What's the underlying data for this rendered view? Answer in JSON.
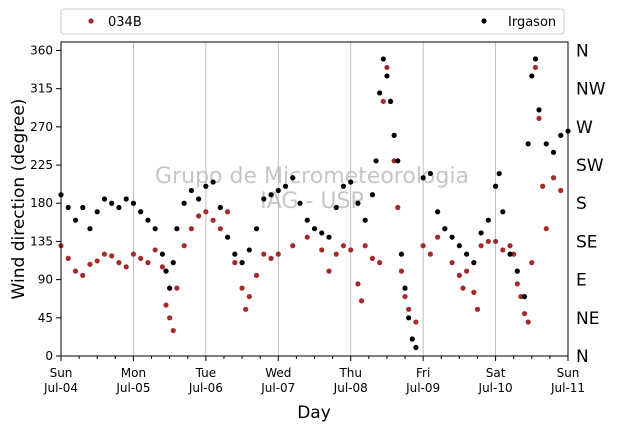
{
  "chart_data": {
    "type": "scatter",
    "xlabel": "Day",
    "ylabel": "Wind direction (degree)",
    "xlim": [
      0,
      7
    ],
    "ylim": [
      0,
      370
    ],
    "yticks": [
      0,
      45,
      90,
      135,
      180,
      225,
      270,
      315,
      360
    ],
    "xticks": [
      {
        "x": 0,
        "line1": "Sun",
        "line2": "Jul-04"
      },
      {
        "x": 1,
        "line1": "Mon",
        "line2": "Jul-05"
      },
      {
        "x": 2,
        "line1": "Tue",
        "line2": "Jul-06"
      },
      {
        "x": 3,
        "line1": "Wed",
        "line2": "Jul-07"
      },
      {
        "x": 4,
        "line1": "Thu",
        "line2": "Jul-08"
      },
      {
        "x": 5,
        "line1": "Fri",
        "line2": "Jul-09"
      },
      {
        "x": 6,
        "line1": "Sat",
        "line2": "Jul-10"
      },
      {
        "x": 7,
        "line1": "Sun",
        "line2": "Jul-11"
      }
    ],
    "compass": [
      {
        "deg": 360,
        "label": "N"
      },
      {
        "deg": 315,
        "label": "NW"
      },
      {
        "deg": 270,
        "label": "W"
      },
      {
        "deg": 225,
        "label": "SW"
      },
      {
        "deg": 180,
        "label": "S"
      },
      {
        "deg": 135,
        "label": "SE"
      },
      {
        "deg": 90,
        "label": "E"
      },
      {
        "deg": 45,
        "label": "NE"
      },
      {
        "deg": 0,
        "label": "N"
      }
    ],
    "legend_position": "top, above plot",
    "grid": "vertical lines at day ticks",
    "watermark": {
      "line1": "Grupo de Micrometeorologia",
      "line2": "IAG - USP"
    },
    "series": [
      {
        "name": "034B",
        "color": "#a52a2a",
        "points": [
          [
            0.0,
            130
          ],
          [
            0.1,
            115
          ],
          [
            0.2,
            100
          ],
          [
            0.3,
            95
          ],
          [
            0.4,
            108
          ],
          [
            0.5,
            112
          ],
          [
            0.6,
            120
          ],
          [
            0.7,
            118
          ],
          [
            0.8,
            110
          ],
          [
            0.9,
            105
          ],
          [
            1.0,
            120
          ],
          [
            1.1,
            115
          ],
          [
            1.2,
            110
          ],
          [
            1.3,
            125
          ],
          [
            1.4,
            105
          ],
          [
            1.45,
            60
          ],
          [
            1.5,
            45
          ],
          [
            1.55,
            30
          ],
          [
            1.6,
            80
          ],
          [
            1.7,
            130
          ],
          [
            1.8,
            150
          ],
          [
            1.9,
            165
          ],
          [
            2.0,
            170
          ],
          [
            2.1,
            160
          ],
          [
            2.2,
            150
          ],
          [
            2.3,
            170
          ],
          [
            2.4,
            110
          ],
          [
            2.5,
            80
          ],
          [
            2.55,
            55
          ],
          [
            2.6,
            70
          ],
          [
            2.7,
            95
          ],
          [
            2.8,
            120
          ],
          [
            2.9,
            115
          ],
          [
            3.0,
            120
          ],
          [
            3.2,
            130
          ],
          [
            3.4,
            140
          ],
          [
            3.6,
            125
          ],
          [
            3.7,
            100
          ],
          [
            3.8,
            120
          ],
          [
            3.9,
            130
          ],
          [
            4.0,
            125
          ],
          [
            4.1,
            85
          ],
          [
            4.15,
            65
          ],
          [
            4.2,
            130
          ],
          [
            4.3,
            115
          ],
          [
            4.4,
            110
          ],
          [
            4.45,
            300
          ],
          [
            4.5,
            340
          ],
          [
            4.55,
            300
          ],
          [
            4.6,
            230
          ],
          [
            4.65,
            175
          ],
          [
            4.7,
            100
          ],
          [
            4.75,
            70
          ],
          [
            4.8,
            55
          ],
          [
            4.9,
            40
          ],
          [
            5.0,
            130
          ],
          [
            5.1,
            120
          ],
          [
            5.2,
            140
          ],
          [
            5.3,
            150
          ],
          [
            5.4,
            110
          ],
          [
            5.5,
            95
          ],
          [
            5.55,
            80
          ],
          [
            5.6,
            100
          ],
          [
            5.7,
            75
          ],
          [
            5.75,
            55
          ],
          [
            5.8,
            130
          ],
          [
            5.9,
            135
          ],
          [
            6.0,
            135
          ],
          [
            6.1,
            125
          ],
          [
            6.2,
            130
          ],
          [
            6.25,
            120
          ],
          [
            6.3,
            85
          ],
          [
            6.35,
            70
          ],
          [
            6.4,
            50
          ],
          [
            6.45,
            40
          ],
          [
            6.5,
            110
          ],
          [
            6.55,
            340
          ],
          [
            6.6,
            280
          ],
          [
            6.65,
            200
          ],
          [
            6.7,
            150
          ],
          [
            6.8,
            210
          ],
          [
            6.9,
            195
          ]
        ]
      },
      {
        "name": "Irgason",
        "color": "#000000",
        "points": [
          [
            0.0,
            190
          ],
          [
            0.1,
            175
          ],
          [
            0.2,
            160
          ],
          [
            0.3,
            175
          ],
          [
            0.4,
            150
          ],
          [
            0.5,
            170
          ],
          [
            0.6,
            185
          ],
          [
            0.7,
            180
          ],
          [
            0.8,
            175
          ],
          [
            0.9,
            185
          ],
          [
            1.0,
            180
          ],
          [
            1.1,
            170
          ],
          [
            1.2,
            160
          ],
          [
            1.3,
            150
          ],
          [
            1.4,
            120
          ],
          [
            1.45,
            100
          ],
          [
            1.5,
            80
          ],
          [
            1.55,
            110
          ],
          [
            1.6,
            150
          ],
          [
            1.7,
            180
          ],
          [
            1.8,
            195
          ],
          [
            1.9,
            185
          ],
          [
            2.0,
            200
          ],
          [
            2.1,
            205
          ],
          [
            2.2,
            175
          ],
          [
            2.3,
            140
          ],
          [
            2.4,
            120
          ],
          [
            2.5,
            110
          ],
          [
            2.6,
            125
          ],
          [
            2.7,
            150
          ],
          [
            2.8,
            185
          ],
          [
            2.9,
            190
          ],
          [
            3.0,
            195
          ],
          [
            3.1,
            200
          ],
          [
            3.2,
            210
          ],
          [
            3.3,
            180
          ],
          [
            3.4,
            160
          ],
          [
            3.5,
            150
          ],
          [
            3.6,
            145
          ],
          [
            3.7,
            140
          ],
          [
            3.8,
            175
          ],
          [
            3.9,
            200
          ],
          [
            4.0,
            205
          ],
          [
            4.1,
            180
          ],
          [
            4.2,
            160
          ],
          [
            4.3,
            190
          ],
          [
            4.35,
            230
          ],
          [
            4.4,
            310
          ],
          [
            4.45,
            350
          ],
          [
            4.5,
            330
          ],
          [
            4.55,
            300
          ],
          [
            4.6,
            260
          ],
          [
            4.65,
            230
          ],
          [
            4.7,
            120
          ],
          [
            4.75,
            80
          ],
          [
            4.8,
            45
          ],
          [
            4.85,
            20
          ],
          [
            4.9,
            10
          ],
          [
            5.0,
            210
          ],
          [
            5.1,
            215
          ],
          [
            5.2,
            170
          ],
          [
            5.3,
            150
          ],
          [
            5.4,
            140
          ],
          [
            5.5,
            130
          ],
          [
            5.6,
            120
          ],
          [
            5.7,
            110
          ],
          [
            5.8,
            145
          ],
          [
            5.9,
            160
          ],
          [
            6.0,
            200
          ],
          [
            6.05,
            215
          ],
          [
            6.1,
            170
          ],
          [
            6.2,
            120
          ],
          [
            6.3,
            100
          ],
          [
            6.4,
            70
          ],
          [
            6.45,
            250
          ],
          [
            6.5,
            330
          ],
          [
            6.55,
            350
          ],
          [
            6.6,
            290
          ],
          [
            6.7,
            250
          ],
          [
            6.8,
            240
          ],
          [
            6.9,
            260
          ],
          [
            7.0,
            265
          ]
        ]
      }
    ]
  }
}
